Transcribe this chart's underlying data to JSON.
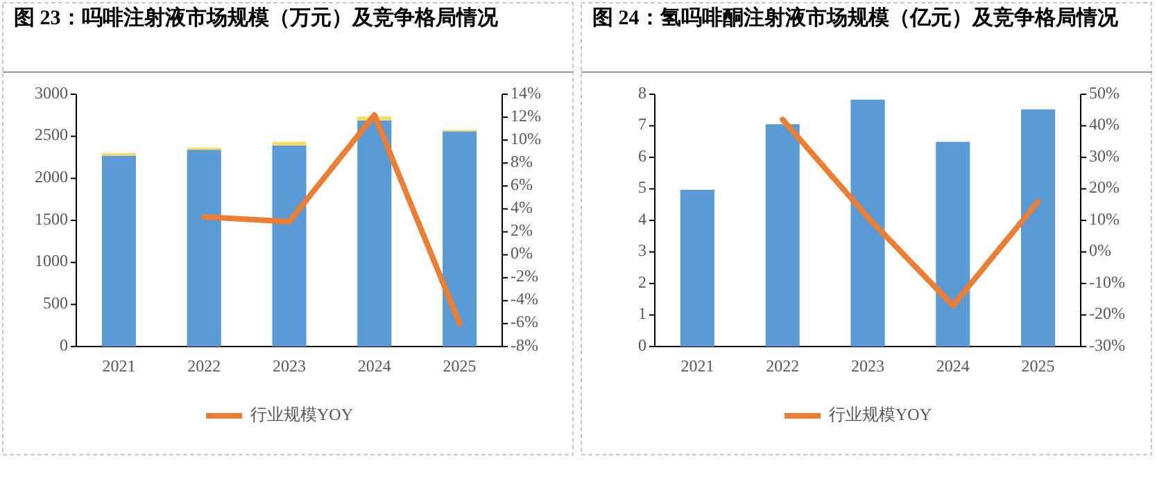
{
  "chart_data": [
    {
      "type": "bar",
      "title": "图 23：吗啡注射液市场规模（万元）及竞争格局情况",
      "categories": [
        "2021",
        "2022",
        "2023",
        "2024",
        "2025"
      ],
      "stacked": true,
      "legend": "bottom",
      "series": [
        {
          "color": "#5b9bd5",
          "values": [
            2270,
            2340,
            2390,
            2690,
            2560
          ]
        },
        {
          "color": "#ffd966",
          "values": [
            30,
            25,
            45,
            45,
            15
          ]
        },
        {
          "name": "行业规模YOY",
          "type": "line",
          "axis": "y2",
          "color": "#ed7d31",
          "values": [
            null,
            3.3,
            2.9,
            12.2,
            -6.0
          ]
        }
      ],
      "ylim": [
        0,
        3000
      ],
      "yticks": [
        0,
        500,
        1000,
        1500,
        2000,
        2500,
        3000
      ],
      "y2lim": [
        -8,
        14
      ],
      "y2ticks": [
        {
          "value": -8,
          "label": "-8%"
        },
        {
          "value": -6,
          "label": "-6%"
        },
        {
          "value": -4,
          "label": "-4%"
        },
        {
          "value": -2,
          "label": "-2%"
        },
        {
          "value": 0,
          "label": "0%"
        },
        {
          "value": 2,
          "label": "2%"
        },
        {
          "value": 4,
          "label": "4%"
        },
        {
          "value": 6,
          "label": "6%"
        },
        {
          "value": 8,
          "label": "8%"
        },
        {
          "value": 10,
          "label": "10%"
        },
        {
          "value": 12,
          "label": "12%"
        },
        {
          "value": 14,
          "label": "14%"
        }
      ]
    },
    {
      "type": "bar",
      "title": "图 24：氢吗啡酮注射液市场规模（亿元）及竞争格局情况",
      "categories": [
        "2021",
        "2022",
        "2023",
        "2024",
        "2025"
      ],
      "legend": "bottom",
      "series": [
        {
          "color": "#5b9bd5",
          "values": [
            4.97,
            7.05,
            7.83,
            6.49,
            7.52
          ]
        },
        {
          "name": "行业规模YOY",
          "type": "line",
          "axis": "y2",
          "color": "#ed7d31",
          "values": [
            null,
            42,
            11,
            -17,
            16
          ]
        }
      ],
      "ylim": [
        0,
        8
      ],
      "yticks": [
        0,
        1,
        2,
        3,
        4,
        5,
        6,
        7,
        8
      ],
      "y2lim": [
        -30,
        50
      ],
      "y2ticks": [
        {
          "value": -30,
          "label": "-30%"
        },
        {
          "value": -20,
          "label": "-20%"
        },
        {
          "value": -10,
          "label": "-10%"
        },
        {
          "value": 0,
          "label": "0%"
        },
        {
          "value": 10,
          "label": "10%"
        },
        {
          "value": 20,
          "label": "20%"
        },
        {
          "value": 30,
          "label": "30%"
        },
        {
          "value": 40,
          "label": "40%"
        },
        {
          "value": 50,
          "label": "50%"
        }
      ]
    }
  ]
}
